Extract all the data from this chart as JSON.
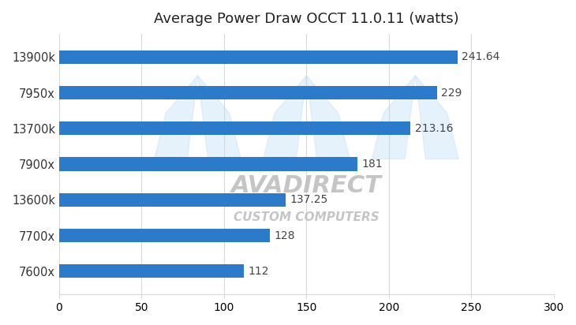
{
  "title": "Average Power Draw OCCT 11.0.11 (watts)",
  "categories": [
    "13900k",
    "7950x",
    "13700k",
    "7900x",
    "13600k",
    "7700x",
    "7600x"
  ],
  "values": [
    241.64,
    229,
    213.16,
    181,
    137.25,
    128,
    112
  ],
  "bar_color": "#2b7bca",
  "xlim": [
    0,
    300
  ],
  "xticks": [
    0,
    50,
    100,
    150,
    200,
    250,
    300
  ],
  "bar_height": 0.38,
  "background_color": "#ffffff",
  "label_fontsize": 10.5,
  "title_fontsize": 13,
  "tick_fontsize": 10,
  "value_fontsize": 10,
  "grid_color": "#d8d8d8",
  "spine_color": "#d8d8d8"
}
